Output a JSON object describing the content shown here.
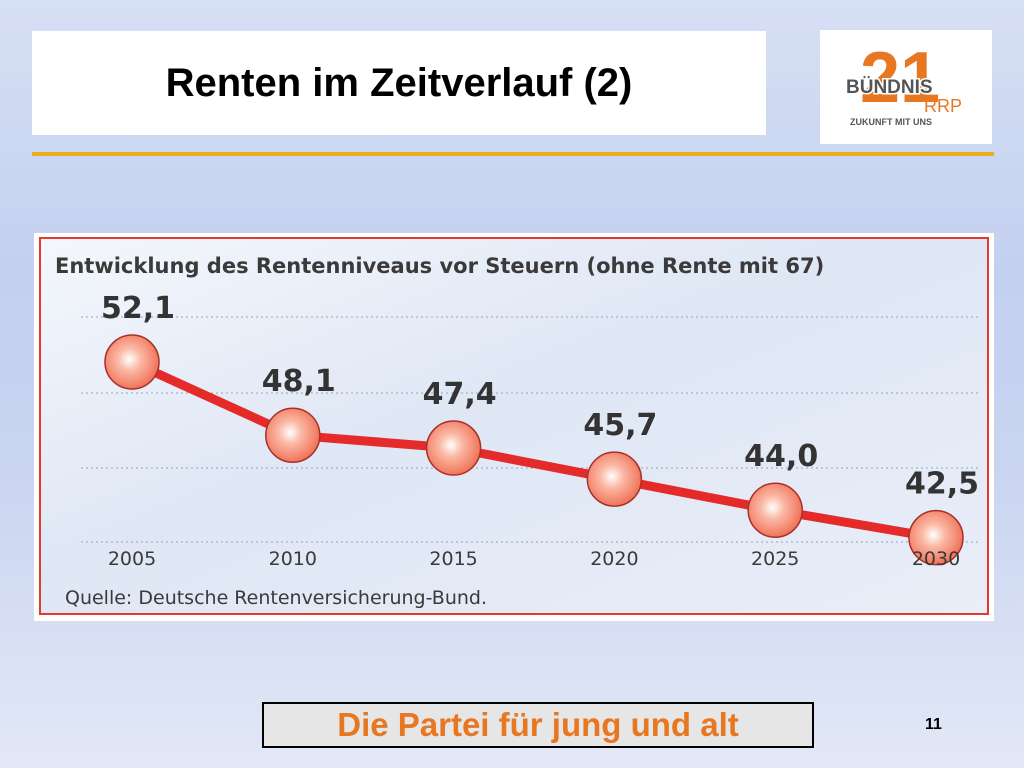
{
  "slide": {
    "title": "Renten im Zeitverlauf (2)",
    "slogan": "Die Partei für jung und alt",
    "page_number": "11"
  },
  "logo": {
    "number": "21",
    "word": "BÜNDNIS",
    "suffix": "RRP",
    "tagline": "ZUKUNFT MIT UNS",
    "color": "#e87722"
  },
  "colors": {
    "accent_rule": "#e8b01c",
    "chart_border": "#e43a2e",
    "line": "#e52a2a",
    "marker_fill": "#f27a5e",
    "slogan_text": "#e87722"
  },
  "chart_data": {
    "type": "line",
    "title": "Entwicklung des Rentenniveaus vor Steuern (ohne Rente mit 67)",
    "source": "Quelle: Deutsche Rentenversicherung-Bund.",
    "xlabel": "",
    "ylabel": "",
    "categories": [
      "2005",
      "2010",
      "2015",
      "2020",
      "2025",
      "2030"
    ],
    "values": [
      52.1,
      48.1,
      47.4,
      45.7,
      44.0,
      42.5
    ],
    "data_labels": [
      "52,1",
      "48,1",
      "47,4",
      "45,7",
      "44,0",
      "42,5"
    ],
    "grid": true,
    "legend": "none"
  }
}
